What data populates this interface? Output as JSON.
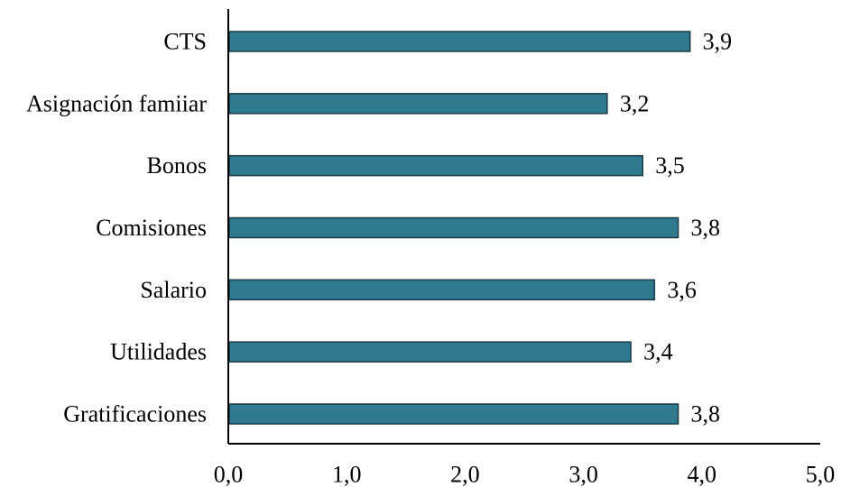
{
  "chart_data": {
    "type": "bar",
    "orientation": "horizontal",
    "categories": [
      "CTS",
      "Asignación famiiar",
      "Bonos",
      "Comisiones",
      "Salario",
      "Utilidades",
      "Gratificaciones"
    ],
    "values": [
      3.9,
      3.2,
      3.5,
      3.8,
      3.6,
      3.4,
      3.8
    ],
    "data_labels": [
      "3,9",
      "3,2",
      "3,5",
      "3,8",
      "3,6",
      "3,4",
      "3,8"
    ],
    "x_ticks": [
      "0,0",
      "1,0",
      "2,0",
      "3,0",
      "4,0",
      "5,0"
    ],
    "xlim": [
      0,
      5
    ],
    "title": "",
    "xlabel": "",
    "ylabel": "",
    "grid": false,
    "legend": "none",
    "bar_color": "#2f7a8e"
  }
}
